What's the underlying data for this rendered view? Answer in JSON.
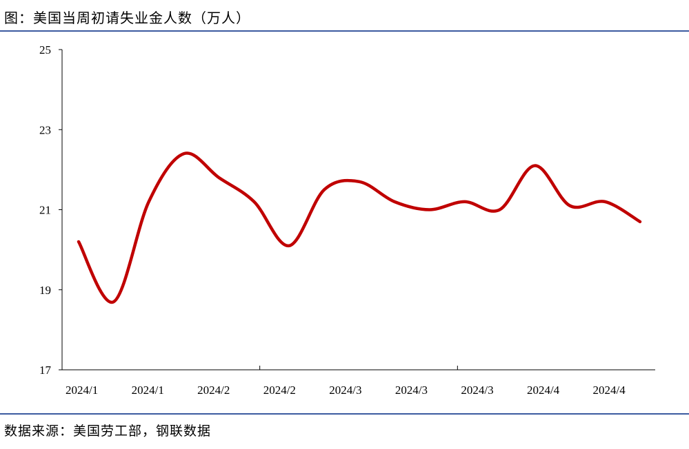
{
  "title": "图：美国当周初请失业金人数（万人）",
  "source": "数据来源：美国劳工部，钢联数据",
  "chart_data": {
    "type": "line",
    "ylim": [
      17,
      25
    ],
    "yticks": [
      17,
      19,
      21,
      23,
      25
    ],
    "xticks": [
      "2024/1",
      "2024/1",
      "2024/2",
      "2024/2",
      "2024/3",
      "2024/3",
      "2024/3",
      "2024/4",
      "2024/4"
    ],
    "grid": false,
    "legend": "none",
    "line_color": "#c00000",
    "series": [
      {
        "values": [
          20.2,
          18.7,
          21.2,
          22.4,
          21.8,
          21.2,
          20.1,
          21.5,
          21.7,
          21.2,
          21.0,
          21.2,
          21.0,
          22.1,
          21.1,
          21.2,
          20.7
        ]
      }
    ]
  }
}
